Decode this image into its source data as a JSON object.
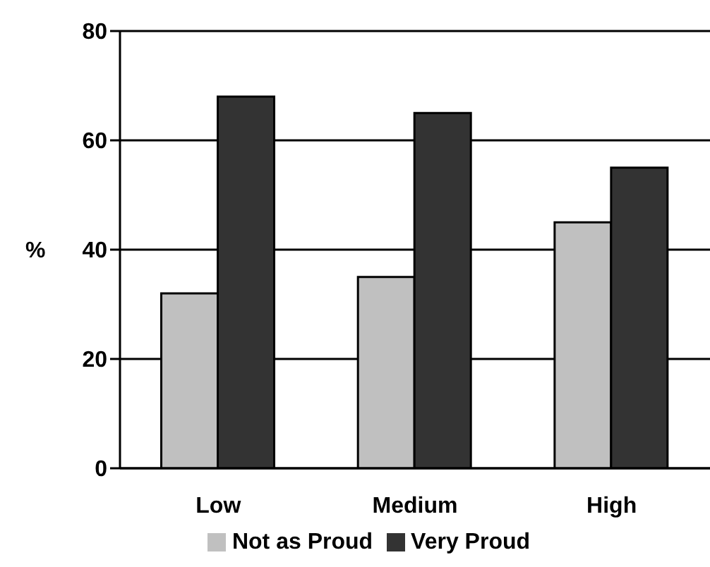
{
  "chart_data": {
    "type": "bar",
    "ylabel": "%",
    "categories": [
      "Low",
      "Medium",
      "High"
    ],
    "series": [
      {
        "name": "Not as Proud",
        "color": "#c0c0c0",
        "values": [
          32,
          35,
          45
        ]
      },
      {
        "name": "Very Proud",
        "color": "#333333",
        "values": [
          68,
          65,
          55
        ]
      }
    ],
    "ylim": [
      0,
      80
    ],
    "yticks": [
      0,
      20,
      40,
      60,
      80
    ],
    "grid": "y",
    "legend": "bottom"
  }
}
